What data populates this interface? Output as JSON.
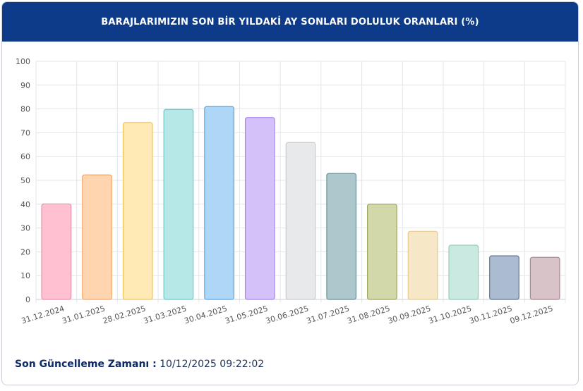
{
  "header": {
    "title": "BARAJLARIMIZIN SON BİR YILDAKİ AY SONLARI DOLULUK ORANLARI (%)"
  },
  "footer": {
    "label": "Son Güncelleme Zamanı :",
    "value": "10/12/2025 09:22:02"
  },
  "chart_data": {
    "type": "bar",
    "title": "BARAJLARIMIZIN SON BİR YILDAKİ AY SONLARI DOLULUK ORANLARI (%)",
    "xlabel": "",
    "ylabel": "",
    "ylim": [
      0,
      100
    ],
    "yticks": [
      0,
      10,
      20,
      30,
      40,
      50,
      60,
      70,
      80,
      90,
      100
    ],
    "grid": true,
    "categories": [
      "31.12.2024",
      "31.01.2025",
      "28.02.2025",
      "31.03.2025",
      "30.04.2025",
      "31.05.2025",
      "30.06.2025",
      "31.07.2025",
      "31.08.2025",
      "30.09.2025",
      "31.10.2025",
      "30.11.2025",
      "09.12.2025"
    ],
    "values": [
      40.1,
      52.3,
      74.3,
      79.8,
      81.0,
      76.4,
      65.9,
      52.9,
      40.0,
      28.6,
      22.8,
      18.3,
      17.7
    ],
    "fill_colors": [
      "#ffc1d2",
      "#ffd5b0",
      "#ffe9b5",
      "#b6e8e8",
      "#aed6f7",
      "#d4c1f9",
      "#e8e9eb",
      "#aec7cc",
      "#d3d8ab",
      "#f6e7c7",
      "#cae9e1",
      "#acbcd0",
      "#d8c3c8"
    ],
    "stroke_colors": [
      "#e98fa6",
      "#f1a86c",
      "#efc45f",
      "#6bcaca",
      "#5aa8e3",
      "#a885ee",
      "#c9cbcf",
      "#6b9097",
      "#9fa65c",
      "#e7c98d",
      "#8fcdbb",
      "#5d7596",
      "#a88690"
    ]
  }
}
